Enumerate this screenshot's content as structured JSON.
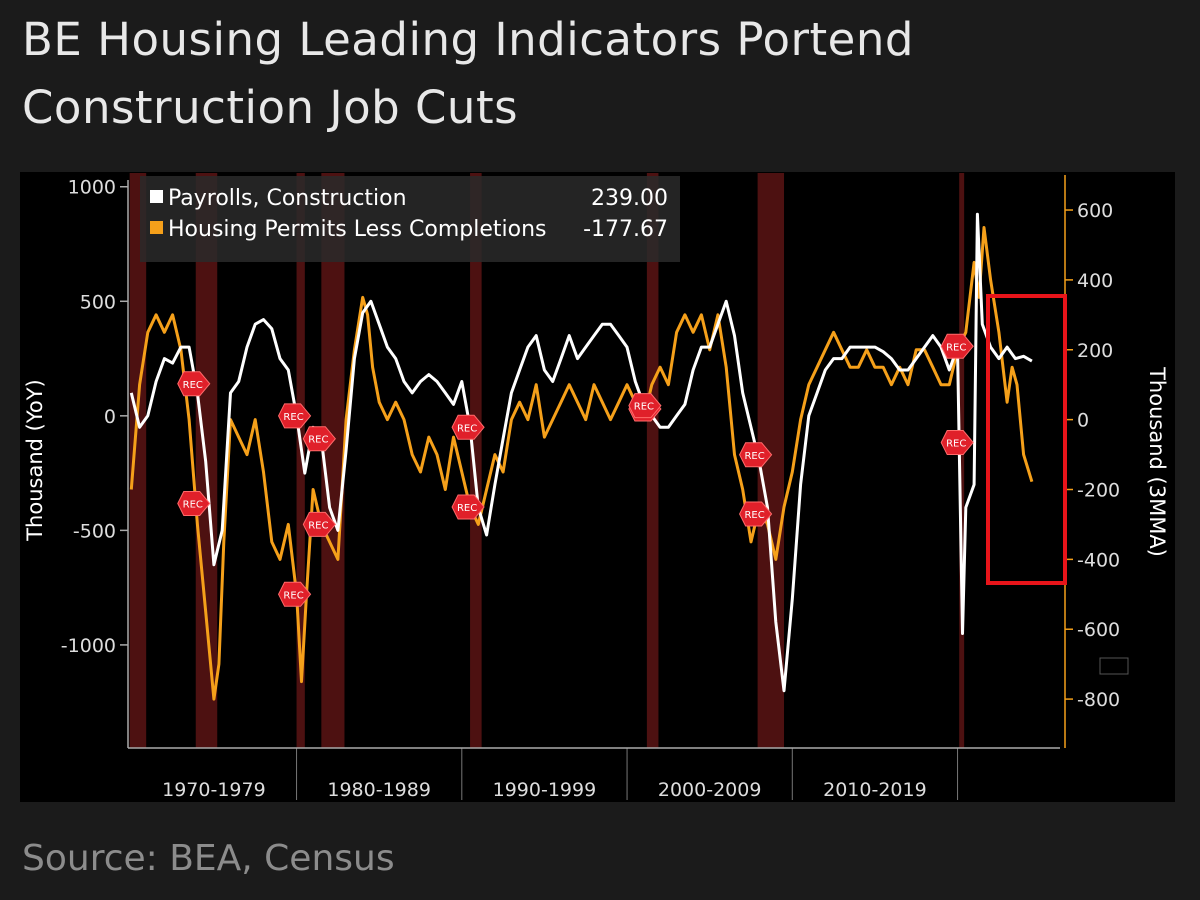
{
  "chart_data": {
    "type": "line",
    "title": "BE Housing Leading Indicators Portend Construction Job Cuts",
    "source": "Source: BEA, Census",
    "y_label": "Thousand (YoY)",
    "y2_label": "Thousand (3MMA)",
    "recession_label": "REC",
    "xlim": [
      1969.8,
      2026.2
    ],
    "xticks": [
      {
        "value": 1970,
        "label": "1970-1979"
      },
      {
        "value": 1980,
        "label": "1980-1989"
      },
      {
        "value": 1990,
        "label": "1990-1999"
      },
      {
        "value": 2000,
        "label": "2000-2009"
      },
      {
        "value": 2010,
        "label": "2010-2019"
      }
    ],
    "ylim": [
      -1450,
      1060
    ],
    "yticks": [
      {
        "value": 1000,
        "label": "1000"
      },
      {
        "value": 500,
        "label": "500"
      },
      0,
      {
        "value": -500,
        "label": "-500"
      },
      {
        "value": -1000,
        "label": "-1000"
      }
    ],
    "y2lim": [
      -940,
      706
    ],
    "y2ticks": [
      600,
      400,
      200,
      0,
      -200,
      -400,
      -600,
      -800
    ],
    "recessions": [
      [
        1969.9,
        1970.9
      ],
      [
        1973.9,
        1975.2
      ],
      [
        1980.0,
        1980.5
      ],
      [
        1981.5,
        1982.9
      ],
      [
        1990.5,
        1991.2
      ],
      [
        2001.2,
        2001.9
      ],
      [
        2007.9,
        2009.5
      ],
      [
        2020.1,
        2020.4
      ]
    ],
    "series": [
      {
        "name": "Payrolls, Construction",
        "color": "#ffffff",
        "value_label": "239.00",
        "x": [
          1970.0,
          1970.5,
          1971.0,
          1971.5,
          1972.0,
          1972.5,
          1973.0,
          1973.5,
          1974.0,
          1974.5,
          1975.0,
          1975.5,
          1976.0,
          1976.5,
          1977.0,
          1977.5,
          1978.0,
          1978.5,
          1979.0,
          1979.5,
          1980.0,
          1980.5,
          1981.0,
          1981.5,
          1982.0,
          1982.5,
          1983.0,
          1983.5,
          1984.0,
          1984.5,
          1985.0,
          1985.5,
          1986.0,
          1986.5,
          1987.0,
          1987.5,
          1988.0,
          1988.5,
          1989.0,
          1989.5,
          1990.0,
          1990.5,
          1991.0,
          1991.5,
          1992.0,
          1992.5,
          1993.0,
          1993.5,
          1994.0,
          1994.5,
          1995.0,
          1995.5,
          1996.0,
          1996.5,
          1997.0,
          1997.5,
          1998.0,
          1998.5,
          1999.0,
          1999.5,
          2000.0,
          2000.5,
          2001.0,
          2001.5,
          2002.0,
          2002.5,
          2003.0,
          2003.5,
          2004.0,
          2004.5,
          2005.0,
          2005.5,
          2006.0,
          2006.5,
          2007.0,
          2007.5,
          2008.0,
          2008.5,
          2009.0,
          2009.5,
          2010.0,
          2010.5,
          2011.0,
          2011.5,
          2012.0,
          2012.5,
          2013.0,
          2013.5,
          2014.0,
          2014.5,
          2015.0,
          2015.5,
          2016.0,
          2016.5,
          2017.0,
          2017.5,
          2018.0,
          2018.5,
          2019.0,
          2019.5,
          2020.0,
          2020.3,
          2020.5,
          2021.0,
          2021.2,
          2021.5,
          2022.0,
          2022.5,
          2023.0,
          2023.5,
          2024.0,
          2024.5
        ],
        "values": [
          100,
          -50,
          0,
          150,
          250,
          230,
          300,
          300,
          100,
          -200,
          -650,
          -500,
          100,
          150,
          300,
          400,
          420,
          380,
          250,
          200,
          0,
          -250,
          -50,
          -100,
          -400,
          -500,
          -150,
          250,
          450,
          500,
          400,
          300,
          250,
          150,
          100,
          150,
          180,
          150,
          100,
          50,
          150,
          -50,
          -400,
          -520,
          -300,
          -100,
          100,
          200,
          300,
          350,
          200,
          150,
          250,
          350,
          250,
          300,
          350,
          400,
          400,
          350,
          300,
          150,
          50,
          0,
          -50,
          -50,
          0,
          50,
          200,
          300,
          300,
          400,
          500,
          350,
          100,
          -50,
          -200,
          -400,
          -900,
          -1200,
          -800,
          -300,
          0,
          100,
          200,
          250,
          250,
          300,
          300,
          300,
          300,
          280,
          250,
          200,
          200,
          250,
          300,
          350,
          300,
          200,
          300,
          -950,
          -400,
          -300,
          880,
          400,
          300,
          250,
          300,
          250,
          260,
          239
        ]
      },
      {
        "name": "Housing Permits Less Completions",
        "color": "#f5a01a",
        "axis": "y2",
        "value_label": "-177.67",
        "x": [
          1970.0,
          1970.5,
          1971.0,
          1971.5,
          1972.0,
          1972.5,
          1973.0,
          1973.5,
          1974.0,
          1974.5,
          1975.0,
          1975.3,
          1975.6,
          1976.0,
          1976.5,
          1977.0,
          1977.5,
          1978.0,
          1978.5,
          1979.0,
          1979.5,
          1980.0,
          1980.3,
          1980.6,
          1981.0,
          1981.5,
          1982.0,
          1982.5,
          1983.0,
          1983.5,
          1984.0,
          1984.3,
          1984.6,
          1985.0,
          1985.5,
          1986.0,
          1986.5,
          1987.0,
          1987.5,
          1988.0,
          1988.5,
          1989.0,
          1989.5,
          1990.0,
          1990.5,
          1991.0,
          1991.5,
          1992.0,
          1992.5,
          1993.0,
          1993.5,
          1994.0,
          1994.5,
          1995.0,
          1995.5,
          1996.0,
          1996.5,
          1997.0,
          1997.5,
          1998.0,
          1998.5,
          1999.0,
          1999.5,
          2000.0,
          2000.5,
          2001.0,
          2001.5,
          2002.0,
          2002.5,
          2003.0,
          2003.5,
          2004.0,
          2004.5,
          2005.0,
          2005.5,
          2006.0,
          2006.5,
          2007.0,
          2007.5,
          2008.0,
          2008.5,
          2009.0,
          2009.5,
          2010.0,
          2010.5,
          2011.0,
          2011.5,
          2012.0,
          2012.5,
          2013.0,
          2013.5,
          2014.0,
          2014.5,
          2015.0,
          2015.5,
          2016.0,
          2016.5,
          2017.0,
          2017.5,
          2018.0,
          2018.5,
          2019.0,
          2019.5,
          2020.0,
          2020.5,
          2021.0,
          2021.3,
          2021.6,
          2022.0,
          2022.5,
          2023.0,
          2023.3,
          2023.6,
          2024.0,
          2024.5
        ],
        "values": [
          -200,
          100,
          250,
          300,
          250,
          300,
          200,
          0,
          -300,
          -550,
          -800,
          -700,
          -350,
          0,
          -50,
          -100,
          0,
          -150,
          -350,
          -400,
          -300,
          -500,
          -750,
          -500,
          -200,
          -300,
          -350,
          -400,
          0,
          200,
          350,
          300,
          150,
          50,
          0,
          50,
          0,
          -100,
          -150,
          -50,
          -100,
          -200,
          -50,
          -150,
          -250,
          -300,
          -200,
          -100,
          -150,
          0,
          50,
          0,
          100,
          -50,
          0,
          50,
          100,
          50,
          0,
          100,
          50,
          0,
          50,
          100,
          50,
          0,
          100,
          150,
          100,
          250,
          300,
          250,
          300,
          200,
          300,
          150,
          -100,
          -200,
          -350,
          -250,
          -300,
          -400,
          -250,
          -150,
          0,
          100,
          150,
          200,
          250,
          200,
          150,
          150,
          200,
          150,
          150,
          100,
          150,
          100,
          200,
          200,
          150,
          100,
          100,
          200,
          250,
          450,
          350,
          550,
          400,
          250,
          50,
          150,
          100,
          -100,
          -177.67
        ]
      }
    ]
  }
}
